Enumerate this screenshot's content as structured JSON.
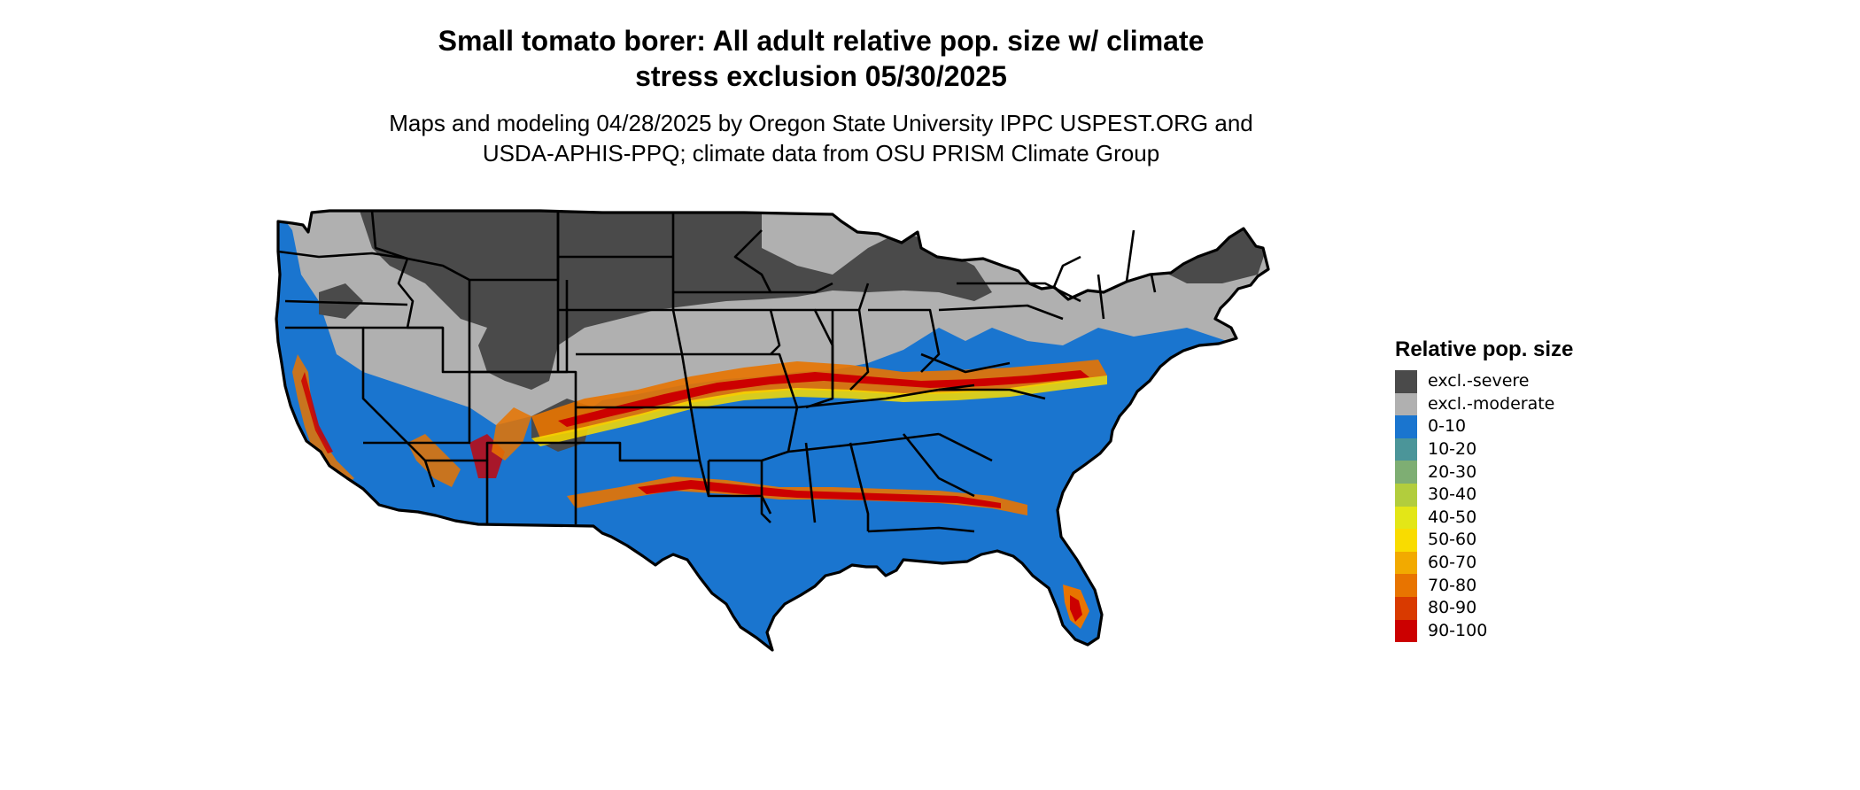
{
  "header": {
    "title_line1": "Small tomato borer: All adult relative pop. size w/ climate",
    "title_line2": "stress exclusion 05/30/2025",
    "subtitle_line1": "Maps and modeling 04/28/2025 by Oregon State University IPPC USPEST.ORG and",
    "subtitle_line2": "USDA-APHIS-PPQ; climate data from OSU PRISM Climate Group"
  },
  "legend": {
    "title": "Relative pop. size",
    "items": [
      {
        "label": "excl.-severe",
        "color": "#4a4a4a"
      },
      {
        "label": "excl.-moderate",
        "color": "#b0b0b0"
      },
      {
        "label": "0-10",
        "color": "#1a75cf"
      },
      {
        "label": "10-20",
        "color": "#4b9599"
      },
      {
        "label": "20-30",
        "color": "#7eae73"
      },
      {
        "label": "30-40",
        "color": "#b2cd3d"
      },
      {
        "label": "40-50",
        "color": "#e3e617"
      },
      {
        "label": "50-60",
        "color": "#f9dc00"
      },
      {
        "label": "60-70",
        "color": "#f2aa00"
      },
      {
        "label": "70-80",
        "color": "#e87400"
      },
      {
        "label": "80-90",
        "color": "#d93a00"
      },
      {
        "label": "90-100",
        "color": "#cc0000"
      }
    ]
  }
}
